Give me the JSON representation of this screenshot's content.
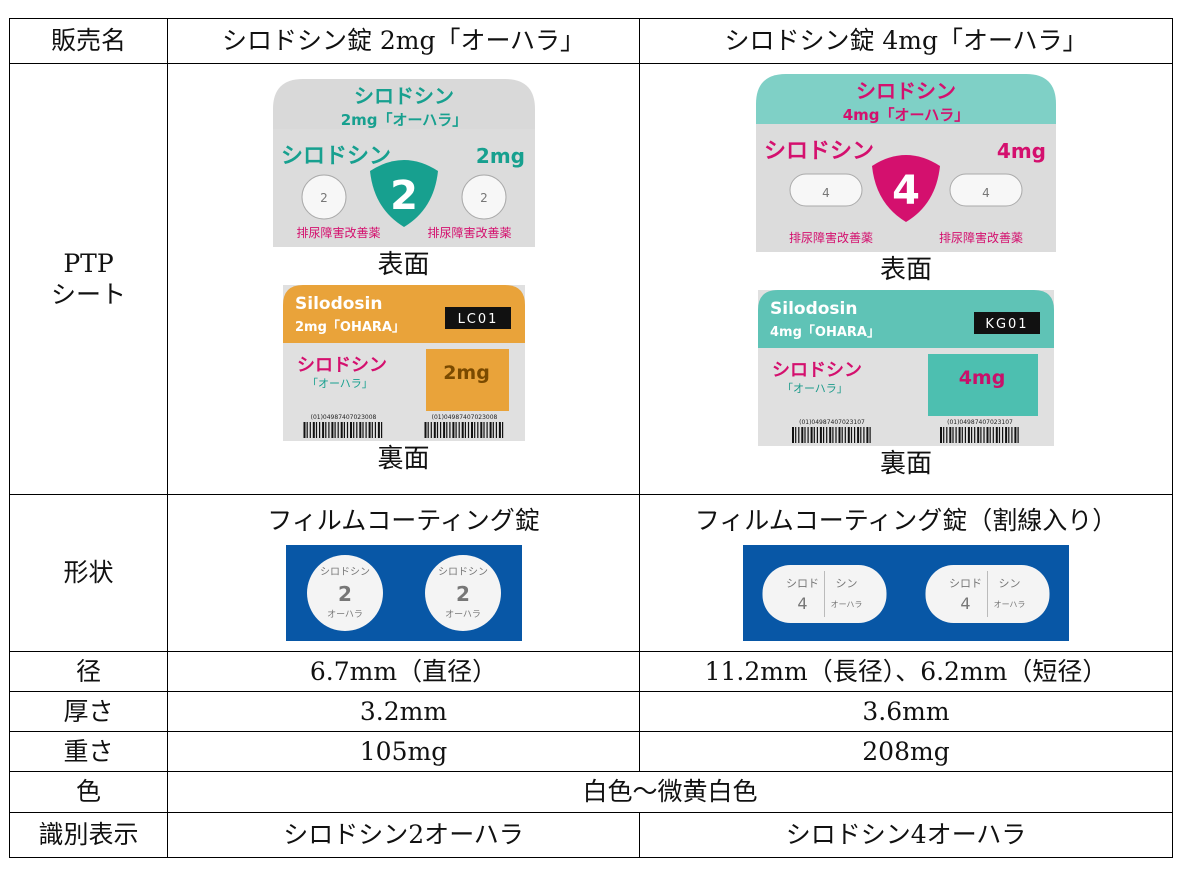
{
  "table": {
    "header": [
      "販売名",
      "シロドシン錠 2mg「オーハラ」",
      "シロドシン錠 4mg「オーハラ」"
    ],
    "ptp": {
      "label_lines": [
        "PTP",
        "シート"
      ],
      "front_caption": "表面",
      "back_caption": "裏面",
      "packages": [
        {
          "name": "シロドシン",
          "strength": "2mg",
          "front_strength": "2mg「オーハラ」",
          "digit": "2",
          "efficacy": "排尿障害改善薬",
          "latin": "Silodosin",
          "latin_strength": "2mg「OHARA」",
          "code": "LC01",
          "maker": "「オーハラ」",
          "barcode": "(01)04987407023008"
        },
        {
          "name": "シロドシン",
          "strength": "4mg",
          "front_strength": "4mg「オーハラ」",
          "digit": "4",
          "efficacy": "排尿障害改善薬",
          "latin": "Silodosin",
          "latin_strength": "4mg「OHARA」",
          "code": "KG01",
          "maker": "「オーハラ」",
          "barcode": "(01)04987407023107"
        }
      ]
    },
    "shape": {
      "label": "形状",
      "descriptions": [
        "フィルムコーティング錠",
        "フィルムコーティング錠（割線入り）"
      ],
      "imprints": [
        {
          "top": "シロドシン",
          "digit": "2",
          "bottom": "オーハラ"
        },
        {
          "top": "シロド",
          "right": "シン",
          "digit": "4",
          "bottom": "オーハラ"
        }
      ]
    },
    "rows": [
      [
        "径",
        "6.7mm（直径）",
        "11.2mm（長径）、6.2mm（短径）"
      ],
      [
        "厚さ",
        "3.2mm",
        "3.6mm"
      ],
      [
        "重さ",
        "105mg",
        "208mg"
      ]
    ],
    "color_row": [
      "色",
      "白色～微黄白色"
    ],
    "id_row": [
      "識別表示",
      "シロドシン2オーハラ",
      "シロドシン4オーハラ"
    ]
  }
}
